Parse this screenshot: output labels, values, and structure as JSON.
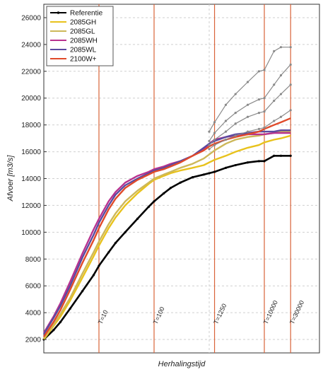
{
  "chart_data": {
    "type": "line",
    "title": "",
    "xlabel": "Herhalingstijd",
    "ylabel": "Afvoer [m3/s]",
    "x_scale": "log",
    "xlim": [
      1,
      100000
    ],
    "ylim": [
      1000,
      27000
    ],
    "y_ticks": [
      2000,
      4000,
      6000,
      8000,
      10000,
      12000,
      14000,
      16000,
      18000,
      20000,
      22000,
      24000,
      26000
    ],
    "grid": true,
    "legend_position": "top-left",
    "return_periods": [
      {
        "label": "T=10",
        "x": 10
      },
      {
        "label": "T=100",
        "x": 100
      },
      {
        "label": "T=1250",
        "x": 1250
      },
      {
        "label": "T=10000",
        "x": 10000
      },
      {
        "label": "T=30000",
        "x": 30000
      }
    ],
    "series": [
      {
        "name": "Referentie",
        "color": "#000000",
        "marker": true,
        "x": [
          1,
          1.5,
          2,
          3,
          5,
          8,
          10,
          15,
          20,
          30,
          50,
          80,
          100,
          150,
          200,
          300,
          500,
          800,
          1000,
          1250,
          2000,
          3000,
          5000,
          8000,
          10000,
          15000,
          20000,
          30000
        ],
        "y": [
          2000,
          2700,
          3300,
          4300,
          5600,
          6800,
          7500,
          8500,
          9200,
          10000,
          11000,
          11900,
          12300,
          12900,
          13300,
          13700,
          14100,
          14300,
          14400,
          14500,
          14800,
          15000,
          15200,
          15300,
          15300,
          15700,
          15700,
          15700
        ]
      },
      {
        "name": "2085GH",
        "color": "#e8c21c",
        "marker": false,
        "x": [
          1,
          1.5,
          2,
          3,
          5,
          8,
          10,
          15,
          20,
          30,
          50,
          80,
          100,
          150,
          200,
          300,
          500,
          800,
          1000,
          1250,
          2000,
          3000,
          5000,
          8000,
          10000,
          15000,
          20000,
          30000
        ],
        "y": [
          2000,
          3000,
          3700,
          4900,
          6600,
          8200,
          9000,
          10300,
          11100,
          12000,
          12900,
          13600,
          13900,
          14200,
          14400,
          14600,
          14800,
          15000,
          15200,
          15400,
          15700,
          16000,
          16300,
          16500,
          16700,
          16900,
          17000,
          17200
        ]
      },
      {
        "name": "2085GL",
        "color": "#cdb85a",
        "marker": false,
        "x": [
          1,
          1.5,
          2,
          3,
          5,
          8,
          10,
          15,
          20,
          30,
          50,
          80,
          100,
          150,
          200,
          300,
          500,
          800,
          1000,
          1250,
          2000,
          3000,
          5000,
          8000,
          10000,
          15000,
          20000,
          30000
        ],
        "y": [
          2100,
          3100,
          3900,
          5100,
          6900,
          8500,
          9300,
          10600,
          11400,
          12300,
          13100,
          13700,
          14000,
          14300,
          14500,
          14800,
          15100,
          15500,
          15800,
          16100,
          16600,
          16900,
          17100,
          17200,
          17300,
          17400,
          17500,
          17500
        ]
      },
      {
        "name": "2085WH",
        "color": "#b8328f",
        "marker": false,
        "x": [
          1,
          1.5,
          2,
          3,
          5,
          8,
          10,
          15,
          20,
          30,
          50,
          80,
          100,
          150,
          200,
          300,
          500,
          800,
          1000,
          1250,
          2000,
          3000,
          5000,
          8000,
          10000,
          15000,
          20000,
          30000
        ],
        "y": [
          2500,
          3700,
          4700,
          6300,
          8400,
          10200,
          11000,
          12300,
          13000,
          13700,
          14200,
          14500,
          14700,
          14900,
          15100,
          15300,
          15700,
          16200,
          16600,
          16900,
          17100,
          17200,
          17300,
          17300,
          17300,
          17400,
          17400,
          17400
        ]
      },
      {
        "name": "2085WL",
        "color": "#5a4aa0",
        "marker": false,
        "x": [
          1,
          1.5,
          2,
          3,
          5,
          8,
          10,
          15,
          20,
          30,
          50,
          80,
          100,
          150,
          200,
          300,
          500,
          800,
          1000,
          1250,
          2000,
          3000,
          5000,
          8000,
          10000,
          15000,
          20000,
          30000
        ],
        "y": [
          2400,
          3600,
          4500,
          6000,
          8100,
          9800,
          10700,
          12000,
          12800,
          13500,
          14000,
          14400,
          14600,
          14800,
          15000,
          15300,
          15700,
          16300,
          16600,
          16800,
          17100,
          17300,
          17400,
          17500,
          17500,
          17500,
          17600,
          17600
        ]
      },
      {
        "name": "2100W+",
        "color": "#e04a2a",
        "marker": false,
        "x": [
          1,
          1.5,
          2,
          3,
          5,
          8,
          10,
          15,
          20,
          30,
          50,
          80,
          100,
          150,
          200,
          300,
          500,
          800,
          1000,
          1250,
          2000,
          3000,
          5000,
          8000,
          10000,
          15000,
          20000,
          30000
        ],
        "y": [
          2200,
          3300,
          4200,
          5700,
          7700,
          9400,
          10300,
          11700,
          12500,
          13300,
          13900,
          14300,
          14500,
          14700,
          14900,
          15200,
          15700,
          16100,
          16400,
          16600,
          16900,
          17100,
          17300,
          17500,
          17700,
          18000,
          18200,
          18500
        ]
      },
      {
        "name": "",
        "color": "#8a8a8a",
        "marker": true,
        "x": [
          1000,
          1250,
          2000,
          3000,
          5000,
          8000,
          10000,
          15000,
          20000,
          30000
        ],
        "y": [
          17500,
          18200,
          19500,
          20300,
          21200,
          22000,
          22100,
          23500,
          23800,
          23800
        ]
      },
      {
        "name": "",
        "color": "#8a8a8a",
        "marker": true,
        "x": [
          1000,
          1250,
          2000,
          3000,
          5000,
          8000,
          10000,
          15000,
          20000,
          30000
        ],
        "y": [
          16800,
          17400,
          18300,
          18900,
          19500,
          19900,
          20000,
          21000,
          21700,
          22500
        ]
      },
      {
        "name": "",
        "color": "#8a8a8a",
        "marker": true,
        "x": [
          1000,
          1250,
          2000,
          3000,
          5000,
          8000,
          10000,
          15000,
          20000,
          30000
        ],
        "y": [
          16500,
          16900,
          17500,
          18100,
          18600,
          18900,
          19000,
          19800,
          20300,
          21000
        ]
      },
      {
        "name": "",
        "color": "#8a8a8a",
        "marker": true,
        "x": [
          1000,
          1250,
          2000,
          3000,
          5000,
          8000,
          10000,
          15000,
          20000,
          30000
        ],
        "y": [
          16200,
          16500,
          16900,
          17200,
          17500,
          17700,
          17800,
          18300,
          18600,
          19100
        ]
      }
    ],
    "legend": [
      "Referentie",
      "2085GH",
      "2085GL",
      "2085WH",
      "2085WL",
      "2100W+"
    ]
  }
}
